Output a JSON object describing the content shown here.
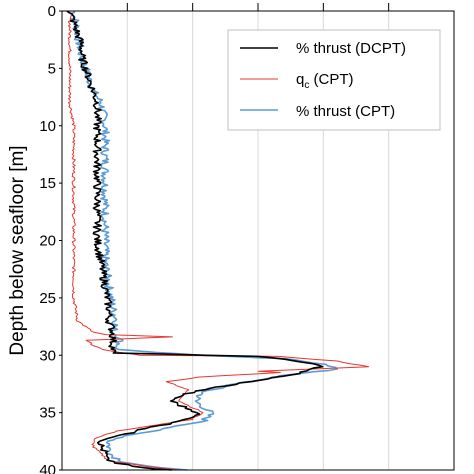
{
  "chart_data": {
    "type": "line",
    "ylabel": "Depth below seafloor [m]",
    "ylim": [
      0,
      40
    ],
    "y_inverted": true,
    "yticks": [
      0,
      5,
      10,
      15,
      20,
      25,
      30,
      35,
      40
    ],
    "grid": true,
    "legend_position": "top-right",
    "series": [
      {
        "name": "% thrust (DCPT)",
        "color": "#000000",
        "points": [
          [
            0.02,
            0
          ],
          [
            0.03,
            1
          ],
          [
            0.04,
            2
          ],
          [
            0.05,
            3
          ],
          [
            0.05,
            4
          ],
          [
            0.06,
            5
          ],
          [
            0.07,
            6
          ],
          [
            0.08,
            7
          ],
          [
            0.09,
            8
          ],
          [
            0.09,
            9
          ],
          [
            0.09,
            10
          ],
          [
            0.09,
            12
          ],
          [
            0.09,
            14
          ],
          [
            0.09,
            16
          ],
          [
            0.09,
            18
          ],
          [
            0.09,
            20
          ],
          [
            0.1,
            22
          ],
          [
            0.11,
            24
          ],
          [
            0.12,
            26
          ],
          [
            0.12,
            27
          ],
          [
            0.13,
            28
          ],
          [
            0.13,
            29
          ],
          [
            0.13,
            29.8
          ],
          [
            0.5,
            30.1
          ],
          [
            0.62,
            30.6
          ],
          [
            0.66,
            31
          ],
          [
            0.6,
            31.6
          ],
          [
            0.48,
            32.3
          ],
          [
            0.36,
            33
          ],
          [
            0.3,
            33.5
          ],
          [
            0.28,
            34
          ],
          [
            0.31,
            34.5
          ],
          [
            0.35,
            35
          ],
          [
            0.32,
            35.6
          ],
          [
            0.27,
            36
          ],
          [
            0.2,
            36.5
          ],
          [
            0.15,
            37
          ],
          [
            0.1,
            37.5
          ],
          [
            0.1,
            38
          ],
          [
            0.11,
            38.5
          ],
          [
            0.11,
            39
          ],
          [
            0.14,
            39.4
          ],
          [
            0.2,
            39.8
          ],
          [
            0.28,
            40
          ]
        ]
      },
      {
        "name": "q_c (CPT)",
        "color": "#e8362f",
        "points": [
          [
            0.02,
            0
          ],
          [
            0.02,
            2
          ],
          [
            0.02,
            5
          ],
          [
            0.02,
            8
          ],
          [
            0.03,
            10
          ],
          [
            0.03,
            15
          ],
          [
            0.03,
            20
          ],
          [
            0.03,
            25
          ],
          [
            0.04,
            27
          ],
          [
            0.08,
            28
          ],
          [
            0.11,
            28.2
          ],
          [
            0.28,
            28.4
          ],
          [
            0.06,
            28.7
          ],
          [
            0.1,
            29.5
          ],
          [
            0.2,
            30
          ],
          [
            0.55,
            30.1
          ],
          [
            0.7,
            30.5
          ],
          [
            0.78,
            31
          ],
          [
            0.5,
            31.4
          ],
          [
            0.56,
            31.5
          ],
          [
            0.35,
            31.9
          ],
          [
            0.27,
            32.3
          ],
          [
            0.32,
            33
          ],
          [
            0.3,
            34
          ],
          [
            0.36,
            35
          ],
          [
            0.33,
            35.6
          ],
          [
            0.22,
            36.2
          ],
          [
            0.14,
            36.6
          ],
          [
            0.08,
            37.3
          ],
          [
            0.08,
            38
          ],
          [
            0.1,
            38.6
          ],
          [
            0.12,
            39.2
          ],
          [
            0.22,
            39.7
          ],
          [
            0.3,
            40
          ]
        ]
      },
      {
        "name": "% thrust (CPT)",
        "color": "#5b9bd5",
        "points": [
          [
            0.03,
            0
          ],
          [
            0.04,
            2
          ],
          [
            0.05,
            4
          ],
          [
            0.06,
            5
          ],
          [
            0.08,
            7
          ],
          [
            0.1,
            8
          ],
          [
            0.11,
            10
          ],
          [
            0.11,
            12
          ],
          [
            0.11,
            14
          ],
          [
            0.11,
            16
          ],
          [
            0.11,
            18
          ],
          [
            0.11,
            20
          ],
          [
            0.11,
            22
          ],
          [
            0.12,
            24
          ],
          [
            0.13,
            26
          ],
          [
            0.14,
            27
          ],
          [
            0.13,
            28
          ],
          [
            0.15,
            28.5
          ],
          [
            0.14,
            29.5
          ],
          [
            0.35,
            30
          ],
          [
            0.56,
            30.3
          ],
          [
            0.68,
            30.8
          ],
          [
            0.7,
            31.2
          ],
          [
            0.56,
            31.8
          ],
          [
            0.44,
            32.5
          ],
          [
            0.36,
            33.2
          ],
          [
            0.34,
            34
          ],
          [
            0.38,
            35
          ],
          [
            0.36,
            35.8
          ],
          [
            0.26,
            36.4
          ],
          [
            0.18,
            36.9
          ],
          [
            0.12,
            37.5
          ],
          [
            0.12,
            38.2
          ],
          [
            0.13,
            38.8
          ],
          [
            0.16,
            39.3
          ],
          [
            0.24,
            39.8
          ],
          [
            0.32,
            40
          ]
        ]
      }
    ]
  }
}
